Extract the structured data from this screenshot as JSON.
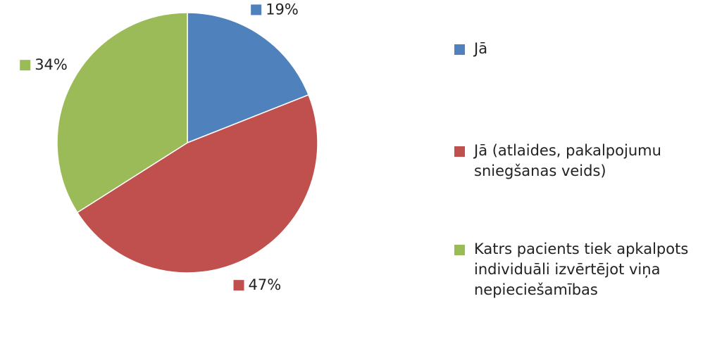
{
  "chart_data": {
    "type": "pie",
    "categories": [
      "Jā",
      "Jā (atlaides, pakalpojumu sniegšanas veids)",
      "Katrs pacients tiek apkalpots individuāli izvērtējot viņa nepieciešamības"
    ],
    "values": [
      19,
      47,
      34
    ],
    "value_labels": [
      "19%",
      "47%",
      "34%"
    ],
    "colors": [
      "#4f81bd",
      "#c0504d",
      "#9bbb59"
    ],
    "legend": "right"
  }
}
